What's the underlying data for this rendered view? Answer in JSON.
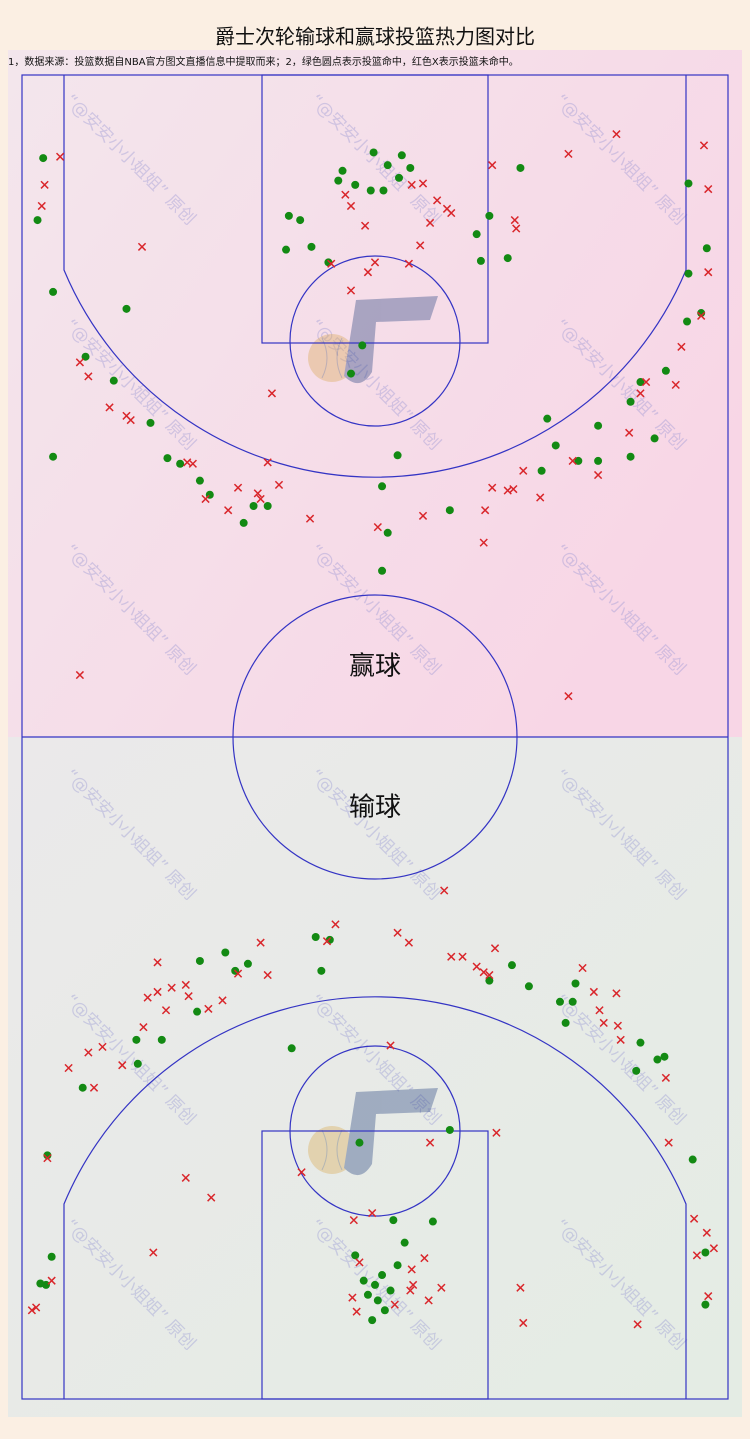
{
  "chart_data": {
    "type": "scatter",
    "title": "爵士次轮输球和赢球投篮热力图对比",
    "subtitle": "1，数据来源：投篮数据自NBA官方图文直播信息中提取而来；2，绿色圆点表示投篮命中，红色X表示投篮未命中。",
    "watermark": "“@安安小小姐姐” 原创",
    "xlim": [
      0,
      50
    ],
    "ylim": [
      0,
      94
    ],
    "panels": [
      {
        "label": "赢球",
        "series": [
          {
            "color": "#138a13",
            "marker": "circle",
            "x": [
              1.5,
              1.1,
              2.2,
              7.4,
              4.5,
              6.5,
              9.1,
              2.2,
              10.3,
              12.6,
              13.3,
              18.9,
              19.7,
              18.7,
              20.5,
              21.7,
              22.7,
              22.4,
              23.6,
              24.7,
              25.6,
              25.9,
              26.9,
              27.5,
              26.7,
              24.9,
              33.1,
              32.2,
              32.5,
              34.4,
              35.3,
              47.2,
              48.5,
              47.2,
              47.1,
              48.1,
              45.6,
              43.1,
              43.8,
              37.2,
              40.8,
              37.8,
              39.4,
              40.8,
              43.1,
              44.8,
              36.8,
              30.3,
              26.6,
              25.5,
              25.9,
              25.5,
              24.1,
              23.3,
              15.7,
              17.4,
              16.4,
              11.2
            ],
            "y": [
              88.1,
              83.7,
              78.6,
              77.4,
              74.0,
              72.3,
              69.3,
              66.9,
              66.8,
              65.2,
              64.2,
              84.0,
              83.7,
              81.6,
              81.8,
              80.7,
              87.2,
              86.5,
              86.2,
              85.8,
              85.8,
              87.6,
              88.3,
              87.4,
              86.7,
              88.5,
              84.0,
              82.7,
              80.8,
              81.0,
              87.4,
              86.3,
              81.7,
              79.9,
              76.5,
              77.1,
              73.0,
              70.8,
              72.2,
              69.6,
              69.1,
              67.7,
              66.6,
              66.6,
              66.9,
              68.2,
              65.9,
              63.1,
              67.0,
              64.8,
              61.5,
              58.8,
              74.8,
              72.8,
              62.2,
              63.4,
              63.4,
              66.4
            ]
          },
          {
            "color": "#d9262b",
            "marker": "x",
            "x": [
              2.7,
              1.6,
              1.4,
              8.5,
              4.1,
              4.7,
              6.2,
              7.4,
              7.7,
              11.7,
              12.1,
              13.0,
              15.3,
              16.7,
              14.6,
              16.9,
              18.2,
              17.4,
              17.7,
              20.4,
              25.2,
              28.4,
              32.7,
              32.8,
              33.3,
              34.8,
              34.4,
              36.7,
              35.5,
              39.0,
              40.8,
              43.0,
              43.8,
              44.2,
              46.3,
              46.7,
              48.1,
              48.6,
              48.3,
              48.6,
              42.1,
              38.7,
              33.3,
              34.9,
              35.0,
              30.1,
              28.9,
              28.2,
              27.4,
              25.0,
              24.5,
              23.3,
              21.9,
              24.3,
              23.3,
              22.9,
              27.6,
              28.4,
              29.4,
              30.4,
              4.1,
              38.7
            ],
            "y": [
              88.2,
              86.2,
              84.7,
              81.8,
              73.6,
              72.6,
              70.4,
              69.8,
              69.5,
              66.5,
              66.4,
              63.9,
              64.7,
              64.3,
              63.1,
              63.9,
              64.9,
              66.5,
              71.4,
              62.5,
              61.9,
              62.7,
              60.8,
              63.1,
              64.7,
              64.6,
              64.5,
              64.0,
              65.9,
              66.6,
              65.6,
              68.6,
              71.4,
              72.2,
              72.0,
              74.7,
              76.9,
              80.0,
              89.0,
              85.9,
              89.8,
              88.4,
              87.6,
              83.7,
              83.1,
              84.5,
              83.5,
              81.9,
              80.6,
              80.7,
              80.0,
              78.7,
              80.6,
              83.3,
              84.7,
              85.5,
              86.2,
              86.3,
              85.1,
              84.2,
              51.4,
              49.9
            ]
          }
        ]
      },
      {
        "label": "输球",
        "series": [
          {
            "color": "#138a13",
            "marker": "circle",
            "x": [
              1.8,
              2.1,
              1.7,
              1.3,
              4.3,
              8.1,
              8.2,
              9.9,
              12.4,
              12.6,
              14.4,
              15.1,
              16.0,
              21.2,
              20.8,
              21.8,
              19.1,
              34.7,
              33.1,
              35.9,
              38.1,
              39.0,
              39.2,
              38.5,
              43.8,
              43.5,
              45.0,
              45.5,
              47.5,
              48.4,
              48.4,
              30.3,
              23.9,
              26.3,
              27.1,
              29.1,
              23.6,
              24.2,
              24.5,
              25.0,
              25.5,
              26.1,
              25.2,
              25.7,
              24.8,
              26.6
            ],
            "y": [
              17.3,
              10.1,
              8.1,
              8.2,
              22.1,
              25.5,
              23.8,
              25.5,
              27.5,
              31.1,
              31.7,
              30.4,
              30.9,
              30.4,
              32.8,
              32.6,
              24.9,
              30.8,
              29.7,
              29.3,
              28.2,
              28.2,
              29.5,
              26.7,
              25.3,
              23.3,
              24.1,
              24.3,
              17.0,
              6.7,
              10.4,
              19.1,
              18.2,
              12.7,
              11.1,
              12.6,
              10.2,
              8.4,
              7.4,
              8.1,
              8.8,
              7.7,
              7.0,
              6.3,
              5.6,
              9.5
            ]
          },
          {
            "color": "#d9262b",
            "marker": "x",
            "x": [
              0.7,
              1.0,
              1.8,
              2.1,
              3.3,
              5.1,
              4.7,
              5.7,
              7.1,
              8.6,
              8.9,
              9.6,
              9.6,
              10.6,
              11.6,
              11.8,
              10.2,
              13.2,
              14.2,
              15.3,
              16.9,
              17.4,
              22.2,
              21.6,
              26.6,
              27.4,
              29.9,
              30.4,
              31.2,
              32.2,
              32.7,
              33.5,
              33.1,
              39.7,
              40.5,
              42.1,
              40.9,
              41.2,
              42.2,
              42.4,
              45.6,
              45.8,
              47.6,
              48.5,
              49.0,
              47.8,
              48.6,
              43.6,
              35.3,
              35.5,
              29.7,
              28.8,
              27.7,
              27.6,
              26.1,
              28.9,
              33.6,
              11.6,
              13.4,
              9.3,
              19.8,
              23.5,
              24.8,
              23.9,
              23.4,
              23.7,
              26.4,
              27.5,
              28.5
            ],
            "y": [
              6.3,
              6.5,
              17.1,
              8.4,
              23.5,
              22.1,
              24.6,
              25.0,
              23.7,
              26.4,
              28.5,
              28.9,
              31.0,
              29.2,
              29.4,
              28.6,
              27.6,
              27.7,
              28.3,
              30.2,
              32.4,
              30.1,
              33.7,
              32.5,
              33.1,
              32.4,
              36.1,
              31.4,
              31.4,
              30.7,
              30.3,
              32.0,
              30.1,
              30.6,
              28.9,
              28.8,
              27.6,
              26.7,
              26.5,
              25.5,
              22.8,
              18.2,
              12.8,
              11.8,
              10.7,
              10.2,
              7.3,
              5.3,
              7.9,
              5.4,
              7.9,
              7.0,
              8.1,
              9.2,
              25.1,
              18.2,
              18.9,
              15.7,
              14.3,
              10.4,
              16.1,
              12.7,
              13.2,
              9.7,
              7.2,
              6.2,
              6.7,
              7.7,
              10.0
            ]
          }
        ]
      }
    ]
  }
}
